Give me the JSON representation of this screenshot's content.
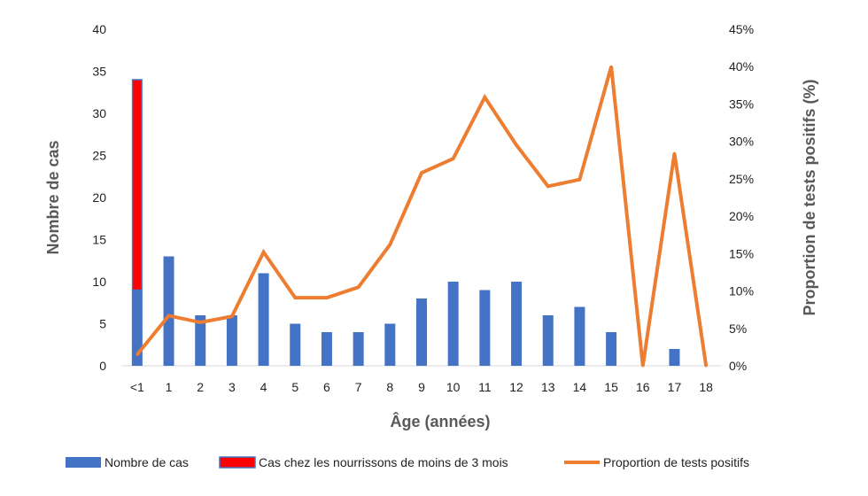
{
  "chart_data": {
    "type": "bar",
    "categories": [
      "<1",
      "1",
      "2",
      "3",
      "4",
      "5",
      "6",
      "7",
      "8",
      "9",
      "10",
      "11",
      "12",
      "13",
      "14",
      "15",
      "16",
      "17",
      "18"
    ],
    "xlabel": "Âge (années)",
    "ylabel": "Nombre de cas",
    "y2label": "Proportion de tests positifs (%)",
    "ylim": [
      0,
      40
    ],
    "y2lim": [
      0,
      45
    ],
    "yticks": [
      "0",
      "5",
      "10",
      "15",
      "20",
      "25",
      "30",
      "35",
      "40"
    ],
    "y2ticks": [
      "0%",
      "5%",
      "10%",
      "15%",
      "20%",
      "25%",
      "30%",
      "35%",
      "40%",
      "45%"
    ],
    "grid": false,
    "legend_position": "bottom",
    "series": [
      {
        "name": "Nombre de cas",
        "type": "bar",
        "axis": "left",
        "color": "#4472C4",
        "values": [
          9,
          13,
          6,
          6,
          11,
          5,
          4,
          4,
          5,
          8,
          10,
          9,
          10,
          6,
          7,
          4,
          0,
          2,
          0
        ]
      },
      {
        "name": "Cas chez les nourrissons de moins de 3 mois",
        "type": "stacked-bar",
        "axis": "left",
        "color": "#FF0000",
        "border_color": "#4472C4",
        "values": [
          25,
          0,
          0,
          0,
          0,
          0,
          0,
          0,
          0,
          0,
          0,
          0,
          0,
          0,
          0,
          0,
          0,
          0,
          0
        ]
      },
      {
        "name": "Proportion de tests positifs",
        "type": "line",
        "axis": "right",
        "color": "#ED7D31",
        "values": [
          1.5,
          6.7,
          5.8,
          6.6,
          15.2,
          9.1,
          9.1,
          10.5,
          16.2,
          25.8,
          27.7,
          35.9,
          29.5,
          24.0,
          24.9,
          40.0,
          0,
          28.4,
          0
        ]
      }
    ]
  }
}
